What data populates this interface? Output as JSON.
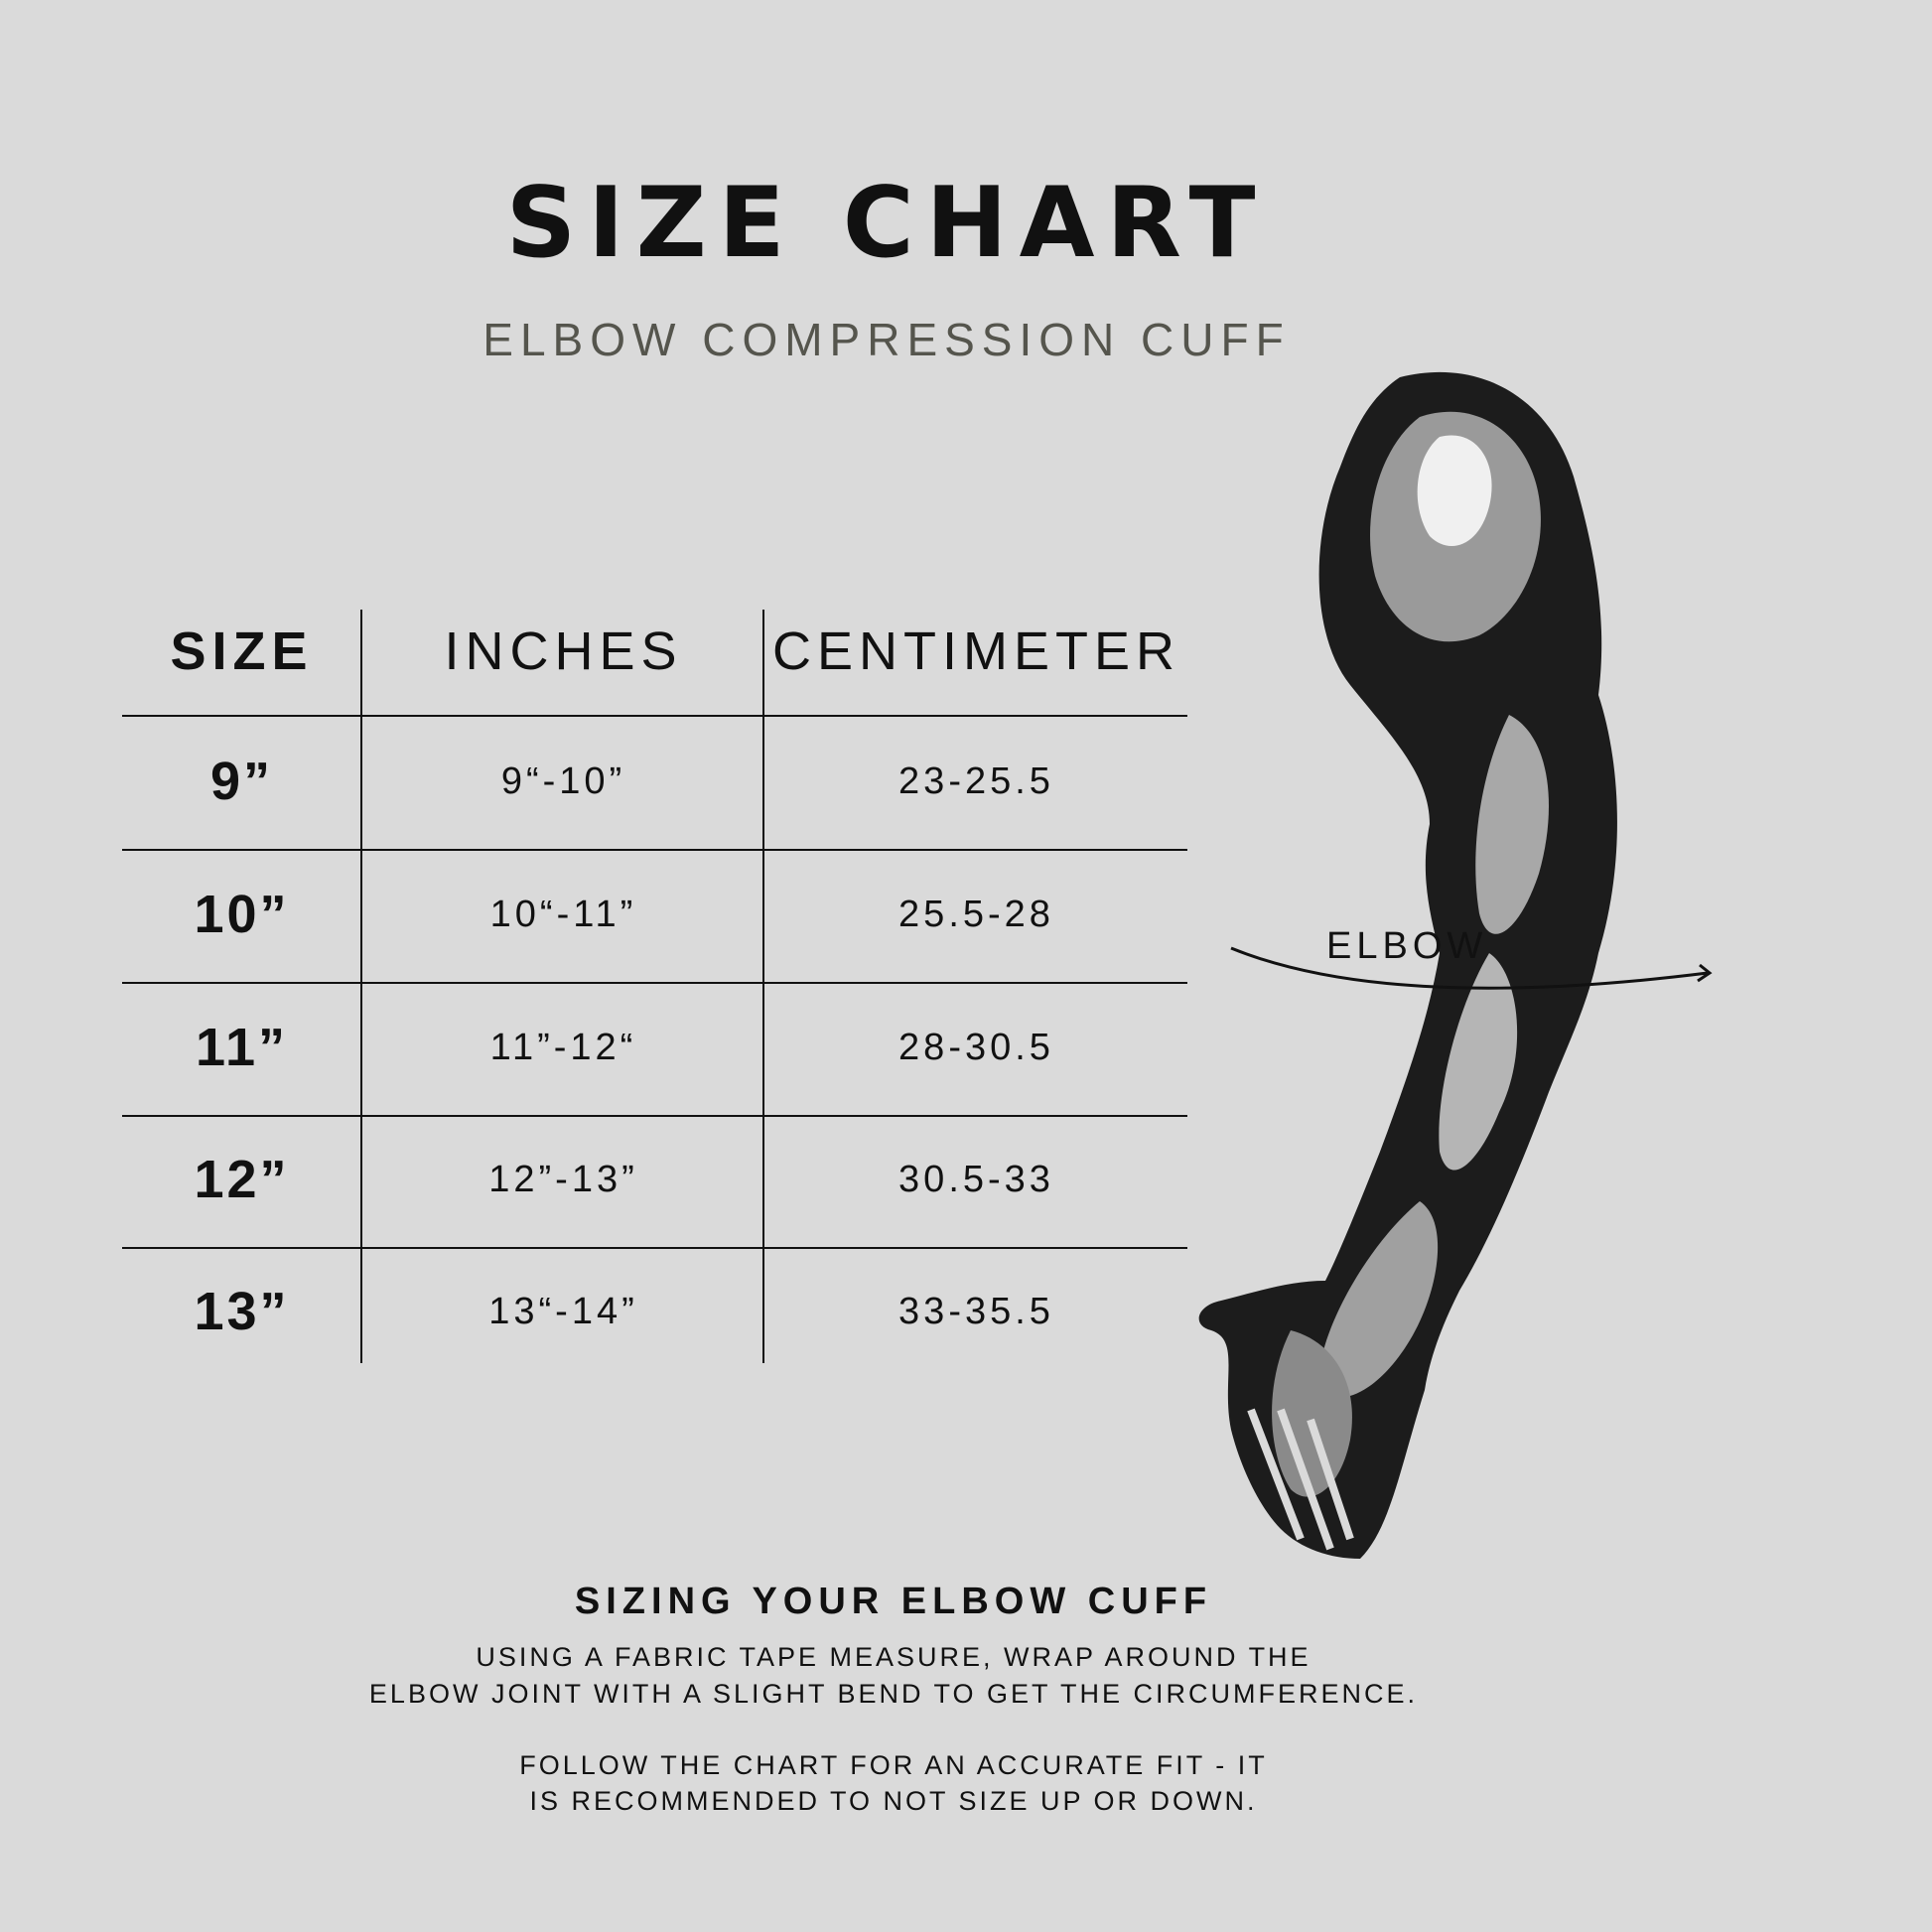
{
  "title": "SIZE CHART",
  "subtitle": "ELBOW COMPRESSION CUFF",
  "table": {
    "headers": [
      "SIZE",
      "INCHES",
      "CENTIMETER"
    ],
    "rows": [
      [
        "9”",
        "9“-10”",
        "23-25.5"
      ],
      [
        "10”",
        "10“-11”",
        "25.5-28"
      ],
      [
        "11”",
        "11”-12“",
        "28-30.5"
      ],
      [
        "12”",
        "12”-13”",
        "30.5-33"
      ],
      [
        "13”",
        "13“-14”",
        "33-35.5"
      ]
    ]
  },
  "illustration": {
    "label": "ELBOW",
    "icon": "arm-illustration"
  },
  "instructions": {
    "title": "SIZING YOUR ELBOW CUFF",
    "lines": [
      "USING A FABRIC TAPE MEASURE, WRAP AROUND THE",
      "ELBOW JOINT WITH A SLIGHT BEND TO GET THE CIRCUMFERENCE.",
      "FOLLOW THE CHART FOR AN ACCURATE FIT - IT",
      "IS RECOMMENDED TO NOT SIZE UP OR DOWN."
    ]
  },
  "colors": {
    "background": "#dadada",
    "text": "#111111",
    "subtitle": "#55554d"
  }
}
